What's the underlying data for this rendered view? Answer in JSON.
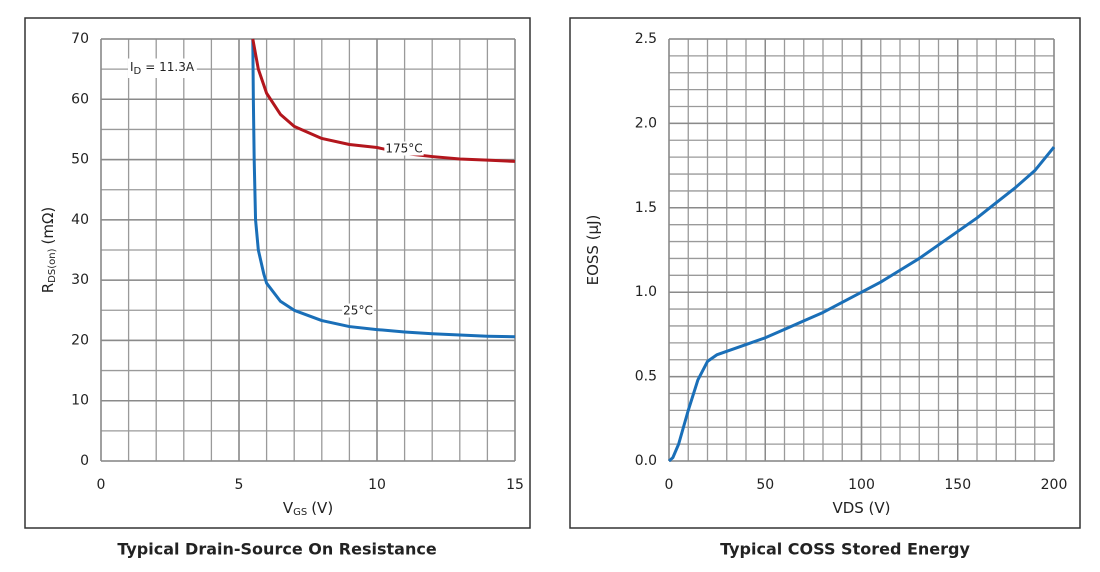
{
  "chart_data": [
    {
      "type": "line",
      "title": "Typical Drain-Source On Resistance",
      "xlabel": [
        {
          "text": "V"
        },
        {
          "text": "GS",
          "sub": true
        },
        {
          "text": "(V)"
        }
      ],
      "ylabel": [
        {
          "text": "R"
        },
        {
          "text": "DS(on)",
          "sub": true
        },
        {
          "text": "(mΩ)"
        }
      ],
      "annotation": [
        {
          "text": "I"
        },
        {
          "text": "D",
          "sub": true
        },
        {
          "text": "= 11.3A"
        }
      ],
      "xlim": [
        0,
        15
      ],
      "xticks": [
        0,
        5,
        10,
        15
      ],
      "x_grid_step": 1,
      "ylim": [
        0,
        70
      ],
      "yticks": [
        0,
        10,
        20,
        30,
        40,
        50,
        60,
        70
      ],
      "y_grid_step": 5,
      "grid": true,
      "series": [
        {
          "name": "25°C",
          "color": "#1a6fb8",
          "x": [
            5.5,
            5.52,
            5.55,
            5.6,
            5.7,
            5.9,
            6,
            6.5,
            7,
            8,
            9,
            10,
            11,
            12,
            13,
            14,
            15
          ],
          "values": [
            70,
            60,
            50,
            40,
            35,
            31,
            29.5,
            26.5,
            25,
            23.3,
            22.3,
            21.8,
            21.4,
            21.1,
            20.9,
            20.7,
            20.6
          ]
        },
        {
          "name": "175°C",
          "color": "#b3161d",
          "x": [
            5.5,
            5.7,
            6,
            6.5,
            7,
            8,
            9,
            10,
            11,
            12,
            13,
            14,
            15
          ],
          "values": [
            70,
            65,
            61,
            57.5,
            55.5,
            53.5,
            52.5,
            52,
            51,
            50.5,
            50.1,
            49.9,
            49.7
          ]
        }
      ]
    },
    {
      "type": "line",
      "title": "Typical COSS Stored Energy",
      "xlabel": [
        {
          "text": "VDS (V)"
        }
      ],
      "ylabel": [
        {
          "text": "EOSS (µJ)"
        }
      ],
      "xlim": [
        0,
        200
      ],
      "xticks": [
        0,
        50,
        100,
        150,
        200
      ],
      "x_grid_step": 10,
      "ylim": [
        0,
        2.5
      ],
      "yticks": [
        {
          "value": 0,
          "label": "0.0"
        },
        0.5,
        {
          "value": 1,
          "label": "1.0"
        },
        1.5,
        {
          "value": 2,
          "label": "2.0"
        },
        2.5
      ],
      "y_grid_step": 0.1,
      "grid": true,
      "series": [
        {
          "name": "EOSS",
          "color": "#1a6fb8",
          "x": [
            0,
            2,
            5,
            10,
            15,
            20,
            25,
            30,
            40,
            50,
            60,
            70,
            80,
            90,
            100,
            110,
            120,
            130,
            140,
            150,
            160,
            170,
            180,
            190,
            200
          ],
          "values": [
            0,
            0.02,
            0.1,
            0.3,
            0.48,
            0.59,
            0.63,
            0.65,
            0.69,
            0.73,
            0.78,
            0.83,
            0.88,
            0.94,
            1.0,
            1.06,
            1.13,
            1.2,
            1.28,
            1.36,
            1.44,
            1.53,
            1.62,
            1.72,
            1.86
          ]
        }
      ]
    }
  ]
}
